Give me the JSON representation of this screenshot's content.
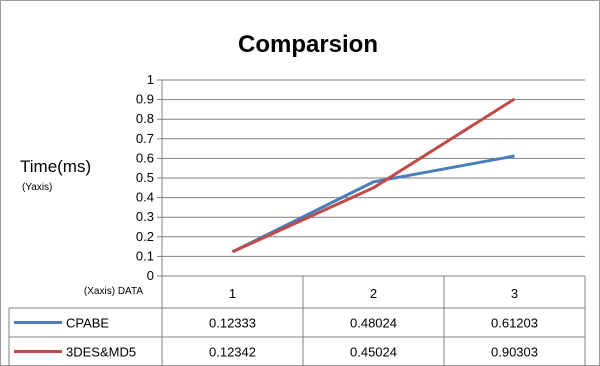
{
  "chart_data": {
    "type": "line",
    "title": "Comparsion",
    "ylabel": "Time(ms)",
    "ylabel_sub": "(Yaxis)",
    "xlabel": "(Xaxis) DATA",
    "categories": [
      "1",
      "2",
      "3"
    ],
    "ylim": [
      0,
      1
    ],
    "yticks": [
      "0",
      "0.1",
      "0.2",
      "0.3",
      "0.4",
      "0.5",
      "0.6",
      "0.7",
      "0.8",
      "0.9",
      "1"
    ],
    "grid": true,
    "legend": "data-table",
    "series": [
      {
        "name": "CPABE",
        "color": "#4a7ebb",
        "values": [
          0.12333,
          0.48024,
          0.61203
        ],
        "labels": [
          "0.12333",
          "0.48024",
          "0.61203"
        ]
      },
      {
        "name": "3DES&MD5",
        "color": "#be4b48",
        "values": [
          0.12342,
          0.45024,
          0.90303
        ],
        "labels": [
          "0.12342",
          "0.45024",
          "0.90303"
        ]
      }
    ]
  }
}
